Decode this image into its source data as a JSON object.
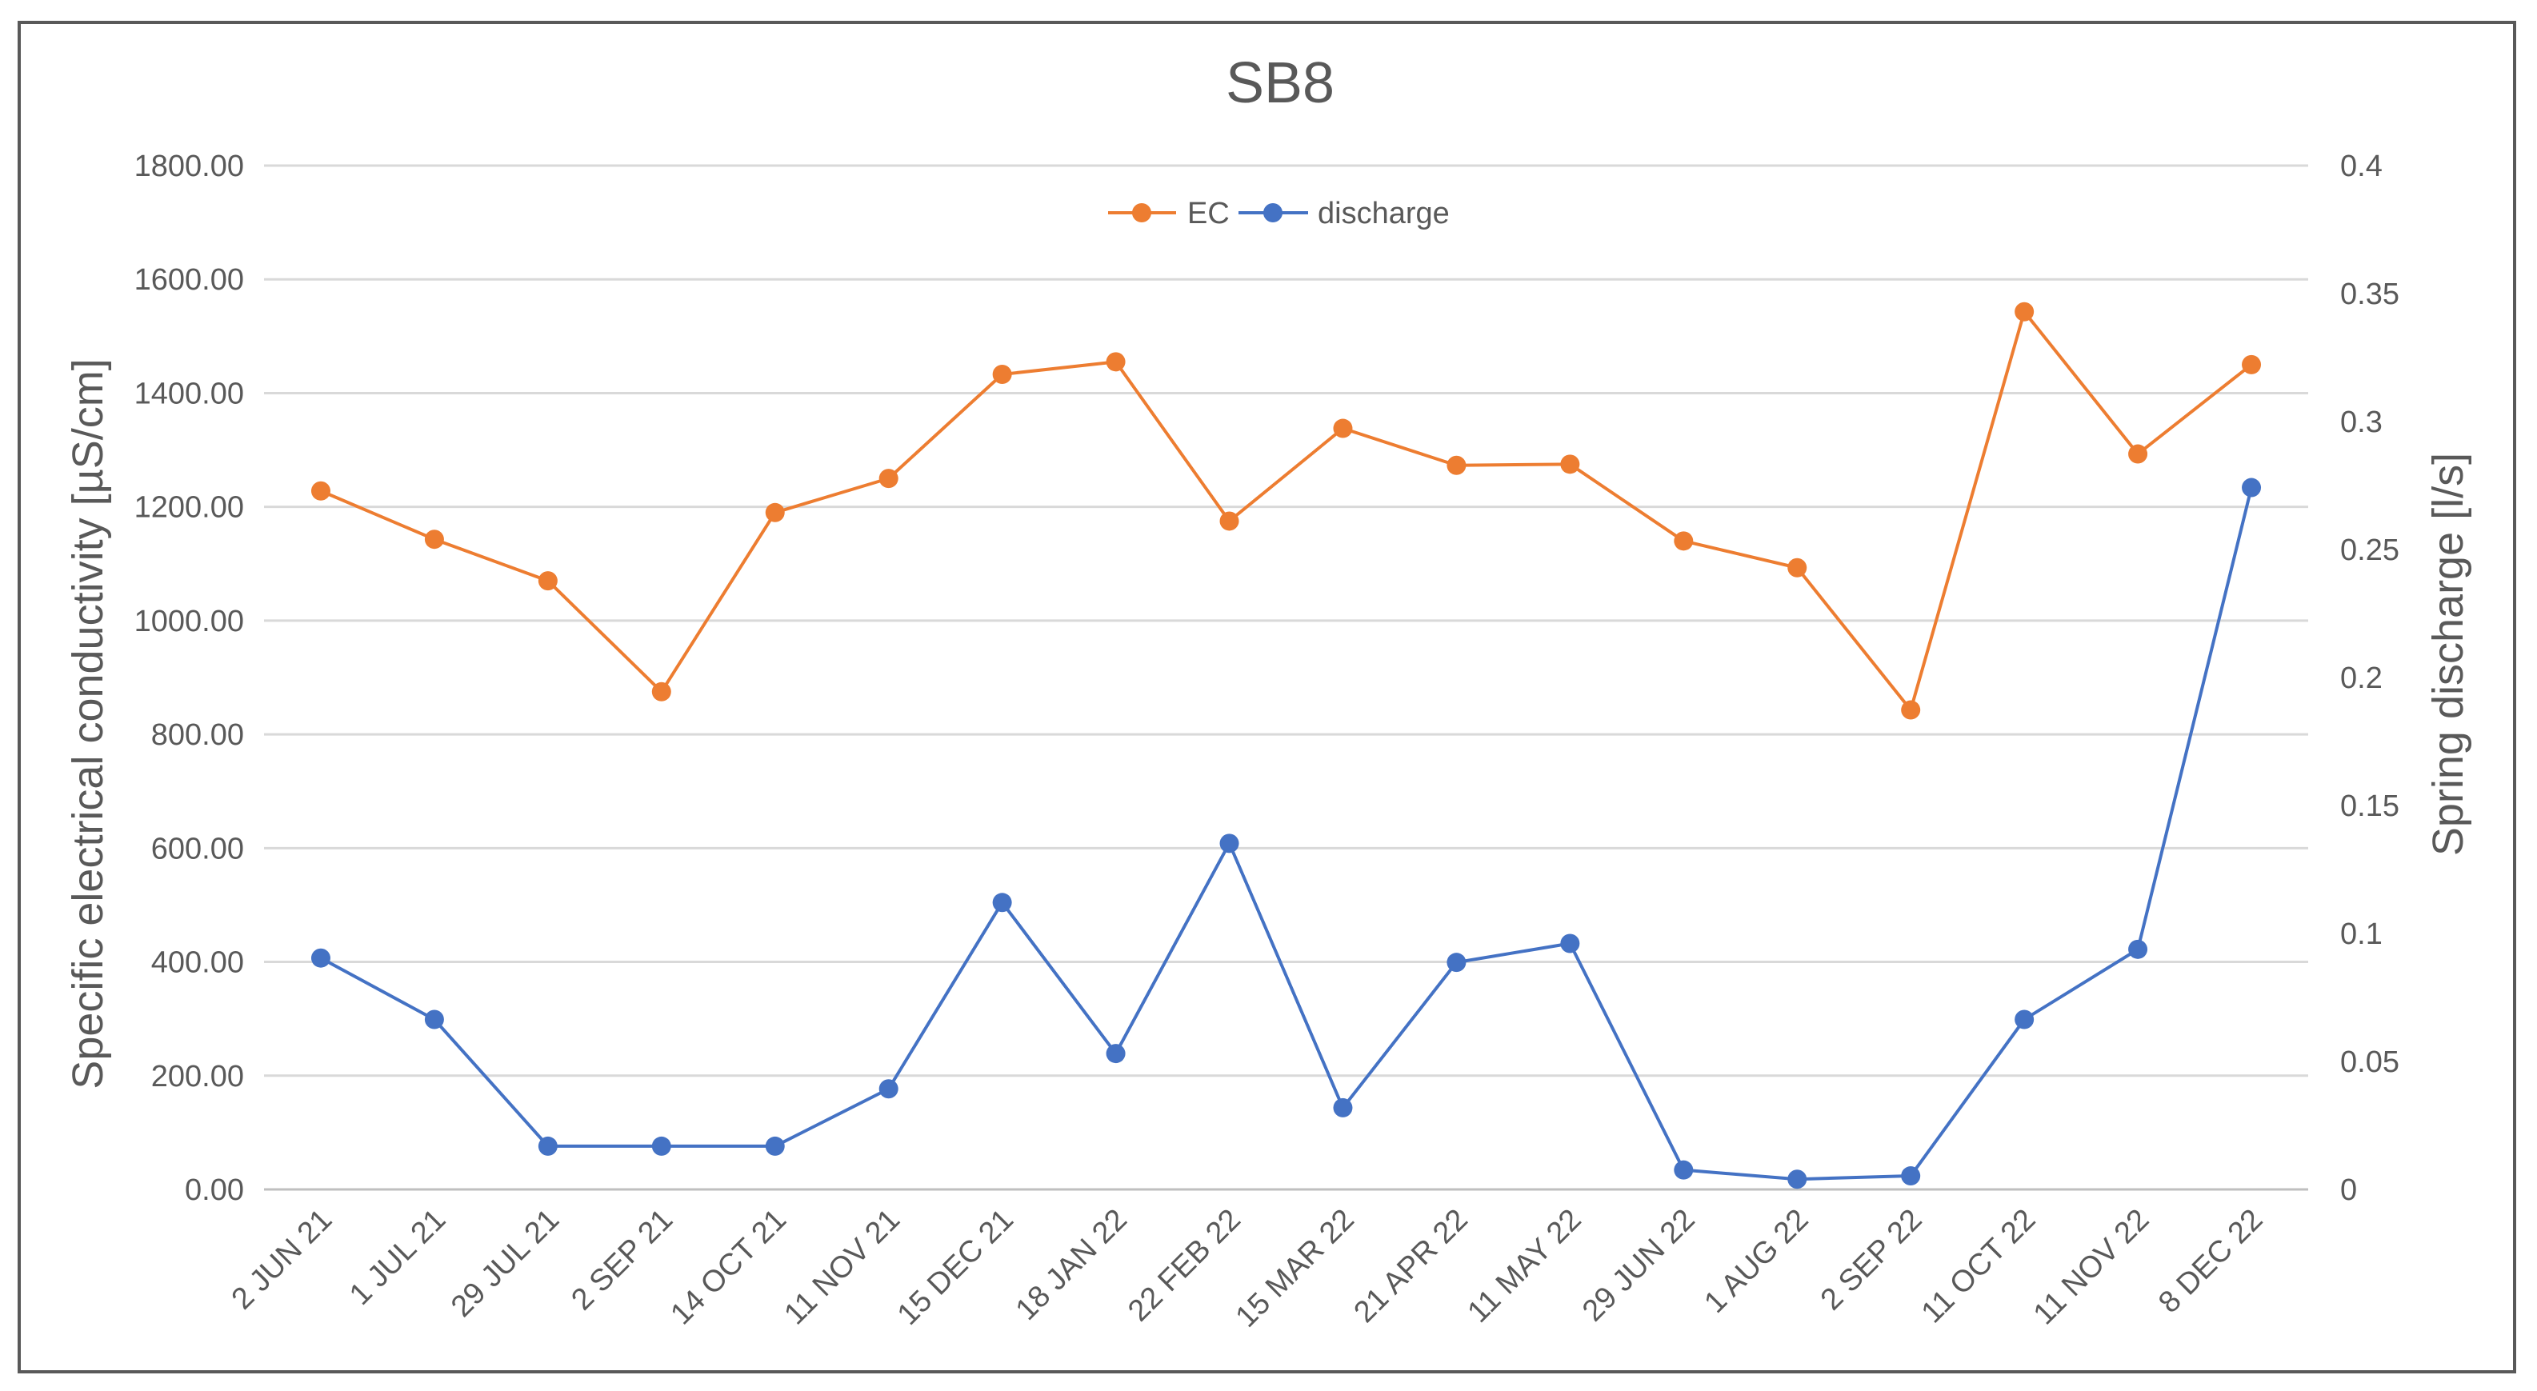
{
  "chart_data": {
    "type": "line",
    "title": "SB8",
    "xlabel": "",
    "ylabel": "Specific electrical conductivity [µS/cm]",
    "y2label": "Spring discharge [l/s]",
    "ylim": [
      0,
      1800
    ],
    "y2lim": [
      0,
      0.4
    ],
    "y_ticks": [
      "0.00",
      "200.00",
      "400.00",
      "600.00",
      "800.00",
      "1000.00",
      "1200.00",
      "1400.00",
      "1600.00",
      "1800.00"
    ],
    "y2_ticks": [
      "0",
      "0.05",
      "0.1",
      "0.15",
      "0.2",
      "0.25",
      "0.3",
      "0.35",
      "0.4"
    ],
    "grid": true,
    "legend_position": "top-center",
    "categories": [
      "2 JUN 21",
      "1 JUL 21",
      "29 JUL 21",
      "2 SEP 21",
      "14 OCT 21",
      "11 NOV 21",
      "15 DEC 21",
      "18 JAN 22",
      "22 FEB 22",
      "15 MAR 22",
      "21 APR 22",
      "11 MAY 22",
      "29 JUN 22",
      "1 AUG 22",
      "2 SEP 22",
      "11 OCT 22",
      "11 NOV 22",
      "8 DEC 22"
    ],
    "series": [
      {
        "name": "EC",
        "axis": "left",
        "color": "#ED7D31",
        "values": [
          1228,
          1143,
          1070,
          875,
          1190,
          1250,
          1433,
          1455,
          1175,
          1338,
          1273,
          1275,
          1140,
          1093,
          843,
          1543,
          1293,
          1450
        ]
      },
      {
        "name": "discharge",
        "axis": "right",
        "color": "#4472C4",
        "values": [
          0.0904,
          0.0664,
          0.0169,
          0.0169,
          0.0169,
          0.0393,
          0.1121,
          0.0531,
          0.1352,
          0.0319,
          0.0887,
          0.0961,
          0.0076,
          0.004,
          0.0053,
          0.0664,
          0.0938,
          0.2742
        ]
      }
    ]
  }
}
